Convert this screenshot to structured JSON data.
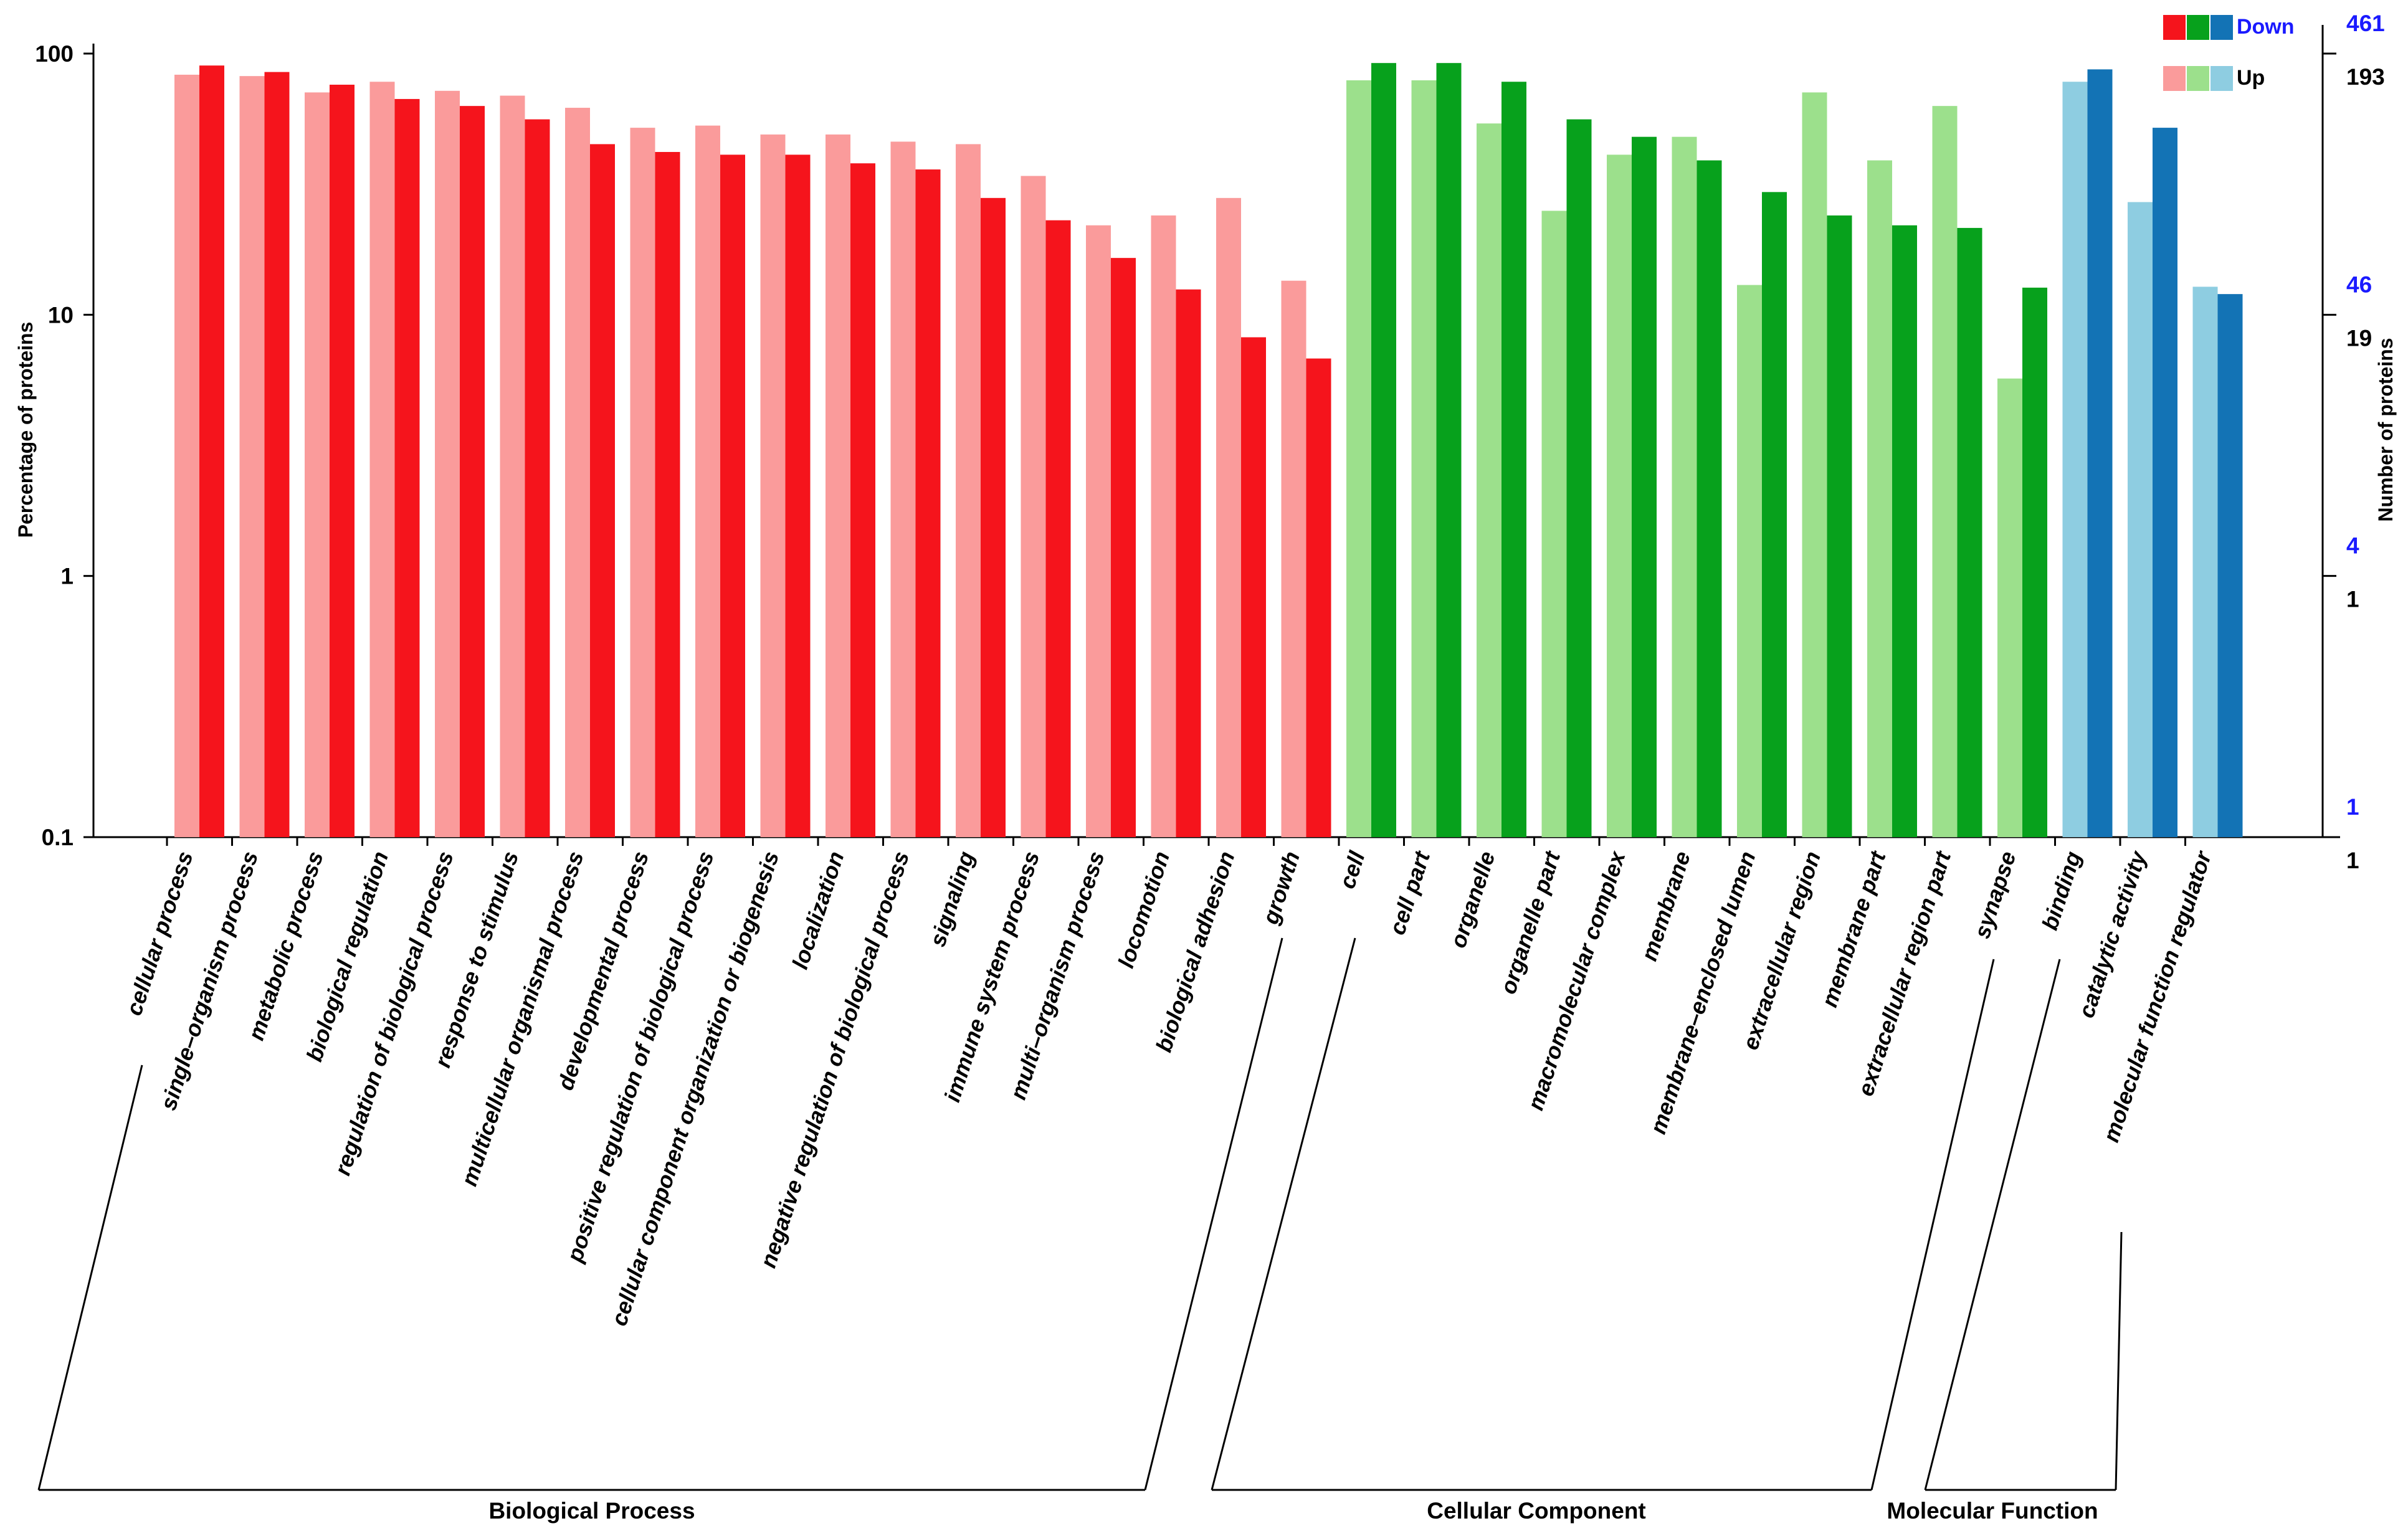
{
  "chart_data": {
    "type": "bar",
    "y_scale": "log",
    "ylabel": "Percentage of proteins",
    "ylabel_right": "Number of proteins",
    "ylim": [
      0.1,
      100
    ],
    "y_ticks": [
      "100",
      "10",
      "1",
      "0.1"
    ],
    "right_ticks_down": [
      "461",
      "46",
      "4",
      "1"
    ],
    "right_ticks_up": [
      "193",
      "19",
      "1",
      "1"
    ],
    "legend": {
      "down_label": "Down",
      "up_label": "Up",
      "position": "top-right"
    },
    "colors": {
      "bp_down": "#f5141c",
      "bp_up": "#fa9b9b",
      "cc_down": "#07a11c",
      "cc_up": "#9ce08c",
      "mf_down": "#1373b5",
      "mf_up": "#8ecde1",
      "down_legend_blue_text": "#1a1aff"
    },
    "groups": [
      {
        "name": "Biological Process",
        "up_color": "bp_up",
        "down_color": "bp_down",
        "categories": [
          {
            "label": "cellular process",
            "up": 83,
            "down": 90
          },
          {
            "label": "single–organism process",
            "up": 82,
            "down": 85
          },
          {
            "label": "metabolic process",
            "up": 71,
            "down": 76
          },
          {
            "label": "biological regulation",
            "up": 78,
            "down": 67
          },
          {
            "label": "regulation of biological process",
            "up": 72,
            "down": 63
          },
          {
            "label": "response to stimulus",
            "up": 69,
            "down": 56
          },
          {
            "label": "multicellular organismal process",
            "up": 62,
            "down": 45
          },
          {
            "label": "developmental process",
            "up": 52,
            "down": 42
          },
          {
            "label": "positive regulation of biological process",
            "up": 53,
            "down": 41
          },
          {
            "label": "cellular component organization or biogenesis",
            "up": 49,
            "down": 41
          },
          {
            "label": "localization",
            "up": 49,
            "down": 38
          },
          {
            "label": "negative regulation of biological process",
            "up": 46,
            "down": 36
          },
          {
            "label": "signaling",
            "up": 45,
            "down": 28
          },
          {
            "label": "immune system process",
            "up": 34,
            "down": 23
          },
          {
            "label": "multi–organism process",
            "up": 22,
            "down": 16.5
          },
          {
            "label": "locomotion",
            "up": 24,
            "down": 12.5
          },
          {
            "label": "biological adhesion",
            "up": 28,
            "down": 8.2
          },
          {
            "label": "growth",
            "up": 13.5,
            "down": 6.8
          }
        ]
      },
      {
        "name": "Cellular Component",
        "up_color": "cc_up",
        "down_color": "cc_down",
        "categories": [
          {
            "label": "cell",
            "up": 79,
            "down": 92
          },
          {
            "label": "cell part",
            "up": 79,
            "down": 92
          },
          {
            "label": "organelle",
            "up": 54,
            "down": 78
          },
          {
            "label": "organelle part",
            "up": 25,
            "down": 56
          },
          {
            "label": "macromolecular complex",
            "up": 41,
            "down": 48
          },
          {
            "label": "membrane",
            "up": 48,
            "down": 39
          },
          {
            "label": "membrane–enclosed lumen",
            "up": 13,
            "down": 29.5
          },
          {
            "label": "extracellular region",
            "up": 71,
            "down": 24
          },
          {
            "label": "membrane part",
            "up": 39,
            "down": 22
          },
          {
            "label": "extracellular region part",
            "up": 63,
            "down": 21.5
          },
          {
            "label": "synapse",
            "up": 5.7,
            "down": 12.7
          }
        ]
      },
      {
        "name": "Molecular Function",
        "up_color": "mf_up",
        "down_color": "mf_down",
        "categories": [
          {
            "label": "binding",
            "up": 78,
            "down": 87
          },
          {
            "label": "catalytic activity",
            "up": 27,
            "down": 52
          },
          {
            "label": "molecular function regulator",
            "up": 12.8,
            "down": 12
          }
        ]
      }
    ]
  }
}
